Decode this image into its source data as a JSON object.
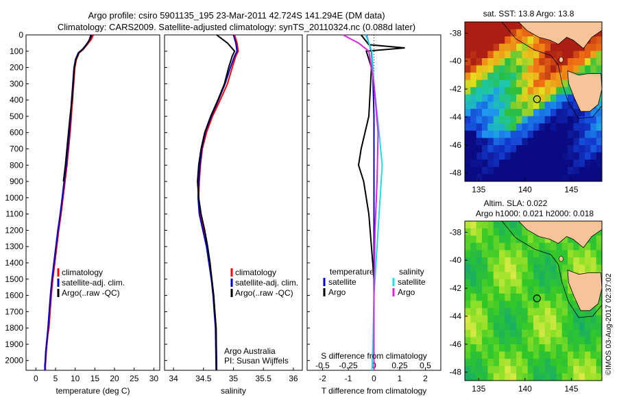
{
  "header": {
    "line1": "Argo profile: csiro 5901135_195 23-Mar-2011 42.724S 141.294E (DM data)",
    "line2": "Climatology: CARS2009. Satellite-adjusted climatology: synTS_20110324.nc (0.088d later)"
  },
  "colors": {
    "climatology": "#ff0000",
    "satellite": "#0000cc",
    "argo": "#000000",
    "sal_satellite": "#22dddd",
    "sal_argo": "#dd22dd",
    "land": "#f7c49a"
  },
  "chart_data": [
    {
      "type": "line",
      "name": "temperature-panel",
      "xlabel": "temperature (deg C)",
      "ylabel": "",
      "xlim": [
        -2.5,
        31.5
      ],
      "ylim": [
        2060,
        0
      ],
      "x_ticks": [
        0,
        5,
        10,
        15,
        20,
        25,
        30
      ],
      "y_ticks": [
        0,
        100,
        200,
        300,
        400,
        500,
        600,
        700,
        800,
        900,
        1000,
        1100,
        1200,
        1300,
        1400,
        1500,
        1600,
        1700,
        1800,
        1900,
        2000
      ],
      "legend": [
        "climatology",
        "satellite-adj. clim.",
        "Argo(..raw -QC)"
      ],
      "legend_position": "lower-right",
      "series": [
        {
          "name": "climatology",
          "x": [
            14.6,
            14.0,
            13.0,
            12.0,
            11.0,
            10.3,
            9.9,
            9.6,
            9.3,
            9.0,
            8.7,
            8.3,
            7.9,
            7.4,
            6.9,
            6.4,
            5.8,
            5.3,
            4.8,
            4.3,
            3.9,
            3.6,
            3.3,
            3.0,
            2.8,
            2.6,
            2.5,
            2.4,
            2.4
          ],
          "y": [
            0,
            30,
            60,
            90,
            110,
            150,
            200,
            300,
            400,
            500,
            600,
            700,
            800,
            900,
            1000,
            1100,
            1200,
            1300,
            1400,
            1500,
            1600,
            1700,
            1800,
            1850,
            1900,
            1950,
            2000,
            2030,
            2060
          ]
        },
        {
          "name": "satellite-adj. clim.",
          "x": [
            14.2,
            13.7,
            12.8,
            11.8,
            10.8,
            10.1,
            9.7,
            9.4,
            9.1,
            8.8,
            8.5,
            8.1,
            7.7,
            7.2,
            6.7,
            6.2,
            5.6,
            5.1,
            4.6,
            4.1,
            3.7,
            3.4,
            3.1,
            2.9,
            2.7,
            2.5,
            2.4,
            2.3,
            2.3
          ],
          "y": [
            0,
            30,
            60,
            90,
            110,
            150,
            200,
            300,
            400,
            500,
            600,
            700,
            800,
            900,
            1000,
            1100,
            1200,
            1300,
            1400,
            1500,
            1600,
            1700,
            1800,
            1850,
            1900,
            1950,
            2000,
            2030,
            2060
          ]
        },
        {
          "name": "Argo(..raw -QC)",
          "x": [
            14.0,
            13.6,
            12.9,
            11.9,
            10.9,
            10.2,
            9.8,
            9.5,
            9.2,
            8.7,
            8.3,
            7.9,
            7.5,
            7.0
          ],
          "y": [
            0,
            30,
            60,
            90,
            110,
            150,
            200,
            300,
            400,
            500,
            600,
            700,
            800,
            900
          ]
        }
      ]
    },
    {
      "type": "line",
      "name": "salinity-panel",
      "xlabel": "salinity",
      "xlim": [
        33.85,
        36.15
      ],
      "ylim": [
        2060,
        0
      ],
      "x_ticks": [
        34,
        34.5,
        35,
        35.5,
        36
      ],
      "legend": [
        "climatology",
        "satellite-adj. clim.",
        "Argo(..raw -QC)"
      ],
      "legend_position": "lower-right",
      "annotation": [
        "Argo Australia",
        "PI: Susan Wijffels"
      ],
      "series": [
        {
          "name": "climatology",
          "x": [
            35.02,
            35.06,
            35.08,
            35.04,
            34.98,
            34.9,
            34.78,
            34.65,
            34.55,
            34.48,
            34.45,
            34.43,
            34.42,
            34.44,
            34.5,
            34.56,
            34.6,
            34.64,
            34.67,
            34.69,
            34.71,
            34.72
          ],
          "y": [
            0,
            50,
            100,
            130,
            200,
            300,
            400,
            500,
            600,
            700,
            800,
            900,
            1000,
            1100,
            1200,
            1300,
            1400,
            1500,
            1600,
            1700,
            1800,
            2060
          ]
        },
        {
          "name": "satellite-adj. clim.",
          "x": [
            35.0,
            35.04,
            35.06,
            35.02,
            34.95,
            34.86,
            34.75,
            34.63,
            34.53,
            34.47,
            34.44,
            34.42,
            34.41,
            34.43,
            34.49,
            34.55,
            34.59,
            34.63,
            34.66,
            34.68,
            34.7,
            34.71
          ],
          "y": [
            0,
            50,
            100,
            130,
            200,
            300,
            400,
            500,
            600,
            700,
            800,
            900,
            1000,
            1100,
            1200,
            1300,
            1400,
            1500,
            1600,
            1700,
            1800,
            2060
          ]
        },
        {
          "name": "Argo(..raw -QC)",
          "x": [
            34.72,
            34.9,
            35.02,
            34.98,
            34.92,
            34.85,
            34.74,
            34.62,
            34.52,
            34.46,
            34.42,
            34.4,
            34.42,
            34.46,
            34.52,
            34.57,
            34.61,
            34.64,
            34.67,
            34.69,
            34.71,
            34.72
          ],
          "y": [
            0,
            50,
            100,
            130,
            200,
            300,
            400,
            500,
            600,
            700,
            800,
            900,
            1000,
            1100,
            1200,
            1300,
            1400,
            1500,
            1600,
            1700,
            1800,
            2060
          ]
        }
      ]
    },
    {
      "type": "line",
      "name": "difference-panel",
      "xlabel": "T difference from climatology",
      "xlabel_top": "S difference from climatology",
      "xlim_T": [
        -2.6,
        2.6
      ],
      "xlim_S": [
        -0.65,
        0.65
      ],
      "ylim": [
        2060,
        0
      ],
      "x_ticks_T": [
        -2,
        -1,
        0,
        1,
        2
      ],
      "x_ticks_S": [
        -0.5,
        -0.25,
        0,
        0.25,
        0.5
      ],
      "x_tick_labels_S": [
        "-0.5",
        "-0.25",
        "0",
        "0.25",
        "0.5"
      ],
      "legend_temperature_title": "temperature",
      "legend_salinity_title": "salinity",
      "legend": [
        "satellite",
        "Argo",
        "satellite",
        "Argo"
      ],
      "series": [
        {
          "name": "T satellite",
          "x": [
            -0.3,
            -0.2,
            -0.1,
            -0.05,
            0.0,
            0.0,
            0.0,
            0.0,
            0.0
          ],
          "y": [
            0,
            50,
            100,
            200,
            500,
            1000,
            1500,
            2000,
            2060
          ]
        },
        {
          "name": "T Argo",
          "x": [
            -0.5,
            -0.2,
            1.2,
            -0.3,
            -0.1,
            -0.2,
            -0.5,
            -0.6,
            -0.4,
            -0.2,
            -0.1,
            0.0,
            0.0
          ],
          "y": [
            0,
            60,
            80,
            100,
            200,
            500,
            700,
            800,
            900,
            1100,
            1300,
            1500,
            2060
          ]
        },
        {
          "name": "S satellite",
          "x": [
            -0.08,
            -0.05,
            -0.02,
            0.0,
            0.05,
            0.08,
            0.06,
            0.03,
            0.0,
            -0.01,
            -0.02
          ],
          "y": [
            0,
            50,
            100,
            300,
            600,
            800,
            1000,
            1300,
            1600,
            1900,
            2060
          ]
        },
        {
          "name": "S Argo",
          "x": [
            -0.3,
            -0.15,
            -0.05,
            0.0,
            0.04,
            0.03,
            0.01,
            0.0,
            0.0
          ],
          "y": [
            0,
            50,
            100,
            300,
            600,
            900,
            1200,
            1600,
            2060
          ]
        }
      ]
    },
    {
      "type": "heatmap",
      "name": "sst-map",
      "title": "sat. SST: 13.8 Argo: 13.8",
      "xlim": [
        133.5,
        148.3
      ],
      "ylim": [
        -48.6,
        -37.2
      ],
      "x_ticks": [
        135,
        140,
        145
      ],
      "y_ticks": [
        -38,
        -40,
        -42,
        -44,
        -46,
        -48
      ],
      "marker": {
        "lon": 141.294,
        "lat": -42.724
      }
    },
    {
      "type": "heatmap",
      "name": "sla-map",
      "title_line1": "Altim. SLA: 0.022",
      "title_line2": "Argo h1000: 0.021 h2000: 0.018",
      "xlim": [
        133.5,
        148.3
      ],
      "ylim": [
        -48.6,
        -37.2
      ],
      "x_ticks": [
        135,
        140,
        145
      ],
      "y_ticks": [
        -38,
        -40,
        -42,
        -44,
        -46,
        -48
      ],
      "marker": {
        "lon": 141.294,
        "lat": -42.724
      }
    }
  ],
  "watermark": "©IMOS 03-Aug-2017 02:37:02"
}
